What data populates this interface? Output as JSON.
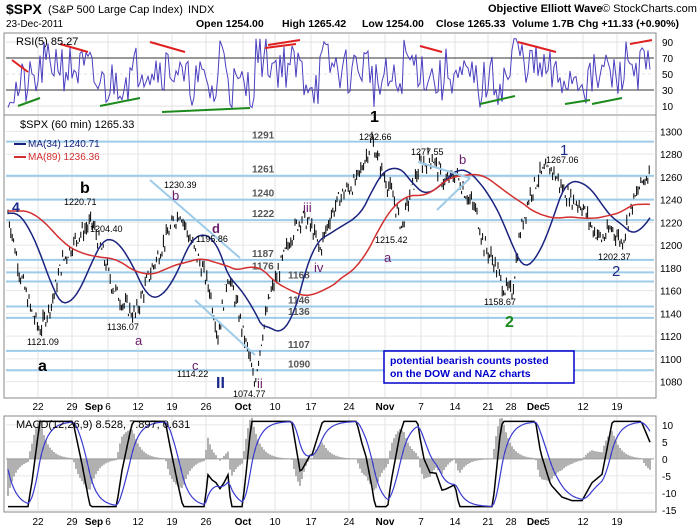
{
  "header": {
    "symbol": "$SPX",
    "name": "(S&P 500 Large Cap Index)",
    "exchange": "INDX",
    "date": "23-Dec-2011",
    "open": "Open 1254.00",
    "high": "High 1265.42",
    "low": "Low 1254.00",
    "close": "Close 1265.33",
    "volume": "Volume 1.7B",
    "chg": "Chg +11.33 (+0.90%)",
    "source": "Objective Elliott Wave",
    "copyright": "© StockCharts.com"
  },
  "rsi_panel": {
    "label": "RSI(5) 85.27",
    "ticks": [
      "90",
      "70",
      "50",
      "30",
      "10"
    ]
  },
  "price_panel": {
    "label": "$SPX (60 min) 1265.33",
    "ma34": "MA(34) 1240.71",
    "ma89": "MA(89) 1236.36",
    "y_ticks": [
      "1300",
      "1280",
      "1260",
      "1240",
      "1220",
      "1200",
      "1180",
      "1160",
      "1140",
      "1120",
      "1100",
      "1080"
    ],
    "pivot_labels": [
      "1291",
      "1261",
      "1240",
      "1222",
      "1187",
      "1176",
      "1168",
      "1146",
      "1136",
      "1107",
      "1090"
    ],
    "price_labels": [
      "1220.71",
      "1204.40",
      "1121.09",
      "1136.07",
      "1230.39",
      "1195.86",
      "1114.22",
      "1074.77",
      "1292.66",
      "1215.42",
      "1277.55",
      "1158.67",
      "1267.06",
      "1202.37"
    ],
    "wave_labels": [
      "4",
      "b",
      "a",
      "b",
      "d",
      "a",
      "c",
      "ii",
      "ii",
      "iii",
      "iv",
      "1",
      "a",
      "b",
      "2",
      "1",
      "2"
    ],
    "note": "potential bearish counts posted on the DOW and NAZ charts"
  },
  "macd_panel": {
    "label": "MACD(12,26,9) 8.528, 7.897, 0.631",
    "ticks": [
      "10",
      "5",
      "0",
      "-5",
      "-10",
      "-15"
    ]
  },
  "x_ticks": [
    "22",
    "29",
    "Sep",
    "6",
    "12",
    "19",
    "26",
    "Oct",
    "10",
    "17",
    "24",
    "Nov",
    "7",
    "14",
    "21",
    "28",
    "Dec",
    "5",
    "12",
    "19"
  ],
  "colors": {
    "price": "#000000",
    "ma34": "#1a237e",
    "ma89": "#d32f2f",
    "pivot": "#9ecbe8",
    "rsi_line": "#4a3fbf",
    "macd_hist": "#9e9e9e",
    "green_wave": "#1b8a1b",
    "blue_wave": "#1a2a8a",
    "purple_wave": "#6a1b6a",
    "note_text": "#0000cc"
  },
  "chart_data": {
    "type": "line",
    "title": "$SPX (S&P 500 Large Cap Index) INDX",
    "x": [
      "Aug 22",
      "Aug 29",
      "Sep 6",
      "Sep 12",
      "Sep 19",
      "Sep 26",
      "Oct 3",
      "Oct 10",
      "Oct 17",
      "Oct 24",
      "Nov 1",
      "Nov 7",
      "Nov 14",
      "Nov 21",
      "Nov 28",
      "Dec 5",
      "Dec 12",
      "Dec 19",
      "Dec 23"
    ],
    "ylim": [
      1070,
      1310
    ],
    "series": [
      {
        "name": "$SPX (60 min)",
        "values": [
          1125,
          1205,
          1170,
          1145,
          1215,
          1140,
          1085,
          1160,
          1210,
          1245,
          1262,
          1255,
          1245,
          1175,
          1195,
          1258,
          1240,
          1215,
          1265
        ]
      },
      {
        "name": "MA(34)",
        "values": [
          1150,
          1170,
          1175,
          1165,
          1180,
          1165,
          1130,
          1140,
          1180,
          1230,
          1250,
          1250,
          1240,
          1205,
          1190,
          1235,
          1240,
          1225,
          1241
        ]
      },
      {
        "name": "MA(89)",
        "values": [
          1170,
          1165,
          1168,
          1165,
          1170,
          1165,
          1155,
          1150,
          1165,
          1200,
          1230,
          1240,
          1240,
          1225,
          1210,
          1225,
          1235,
          1232,
          1236
        ]
      }
    ],
    "pivots": [
      1291,
      1261,
      1240,
      1222,
      1187,
      1176,
      1168,
      1146,
      1136,
      1107,
      1090
    ],
    "grid": true,
    "legend": "top-left"
  }
}
